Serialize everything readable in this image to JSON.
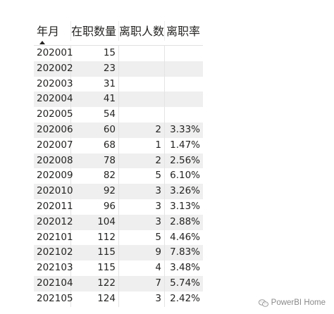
{
  "table": {
    "columns": [
      "年月",
      "在职数量",
      "离职人数",
      "离职率"
    ],
    "sort_icon": "sort-ascending-icon",
    "rows": [
      {
        "month": "202001",
        "headcount": "15",
        "leavers": "",
        "rate": ""
      },
      {
        "month": "202002",
        "headcount": "23",
        "leavers": "",
        "rate": ""
      },
      {
        "month": "202003",
        "headcount": "31",
        "leavers": "",
        "rate": ""
      },
      {
        "month": "202004",
        "headcount": "41",
        "leavers": "",
        "rate": ""
      },
      {
        "month": "202005",
        "headcount": "54",
        "leavers": "",
        "rate": ""
      },
      {
        "month": "202006",
        "headcount": "60",
        "leavers": "2",
        "rate": "3.33%"
      },
      {
        "month": "202007",
        "headcount": "68",
        "leavers": "1",
        "rate": "1.47%"
      },
      {
        "month": "202008",
        "headcount": "78",
        "leavers": "2",
        "rate": "2.56%"
      },
      {
        "month": "202009",
        "headcount": "82",
        "leavers": "5",
        "rate": "6.10%"
      },
      {
        "month": "202010",
        "headcount": "92",
        "leavers": "3",
        "rate": "3.26%"
      },
      {
        "month": "202011",
        "headcount": "96",
        "leavers": "3",
        "rate": "3.13%"
      },
      {
        "month": "202012",
        "headcount": "104",
        "leavers": "3",
        "rate": "2.88%"
      },
      {
        "month": "202101",
        "headcount": "112",
        "leavers": "5",
        "rate": "4.46%"
      },
      {
        "month": "202102",
        "headcount": "115",
        "leavers": "9",
        "rate": "7.83%"
      },
      {
        "month": "202103",
        "headcount": "115",
        "leavers": "4",
        "rate": "3.48%"
      },
      {
        "month": "202104",
        "headcount": "122",
        "leavers": "7",
        "rate": "5.74%"
      },
      {
        "month": "202105",
        "headcount": "124",
        "leavers": "3",
        "rate": "2.42%"
      }
    ]
  },
  "watermark": {
    "text": "PowerBI Home",
    "icon": "wechat-icon"
  }
}
